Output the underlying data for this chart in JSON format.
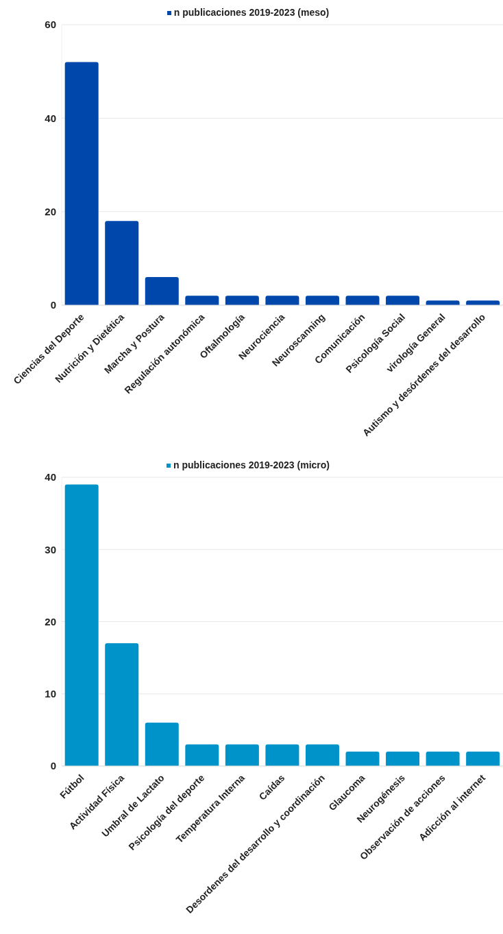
{
  "chart_data": [
    {
      "type": "bar",
      "categories": [
        "Ciencias del Deporte",
        "Nutrición y Dietética",
        "Marcha y Postura",
        "Regulación autonómica",
        "Oftalmología",
        "Neurociencia",
        "Neuroscanning",
        "Comunicación",
        "Psicología Social",
        "virología General",
        "Autismo y desórdenes del desarrollo"
      ],
      "series": [
        {
          "name": "n publicaciones 2019-2023 (meso)",
          "color": "#0047ab",
          "values": [
            52,
            18,
            6,
            2,
            2,
            2,
            2,
            2,
            2,
            1,
            1
          ]
        }
      ],
      "ylim": [
        0,
        60
      ],
      "yticks": [
        0,
        20,
        40,
        60
      ],
      "grid": "y",
      "legend": "top"
    },
    {
      "type": "bar",
      "categories": [
        "Fútbol",
        "Actividad Física",
        "Umbral de Lactato",
        "Psicología del deporte",
        "Temperatura Interna",
        "Caídas",
        "Desordenes del desarrollo y coordinación",
        "Glaucoma",
        "Neurogénesis",
        "Observación de acciones",
        "Adicción al internet"
      ],
      "series": [
        {
          "name": "n publicaciones 2019-2023 (micro)",
          "color": "#0093c9",
          "values": [
            39,
            17,
            6,
            3,
            3,
            3,
            3,
            2,
            2,
            2,
            2
          ]
        }
      ],
      "ylim": [
        0,
        40
      ],
      "yticks": [
        0,
        10,
        20,
        30,
        40
      ],
      "grid": "y",
      "legend": "top"
    }
  ]
}
